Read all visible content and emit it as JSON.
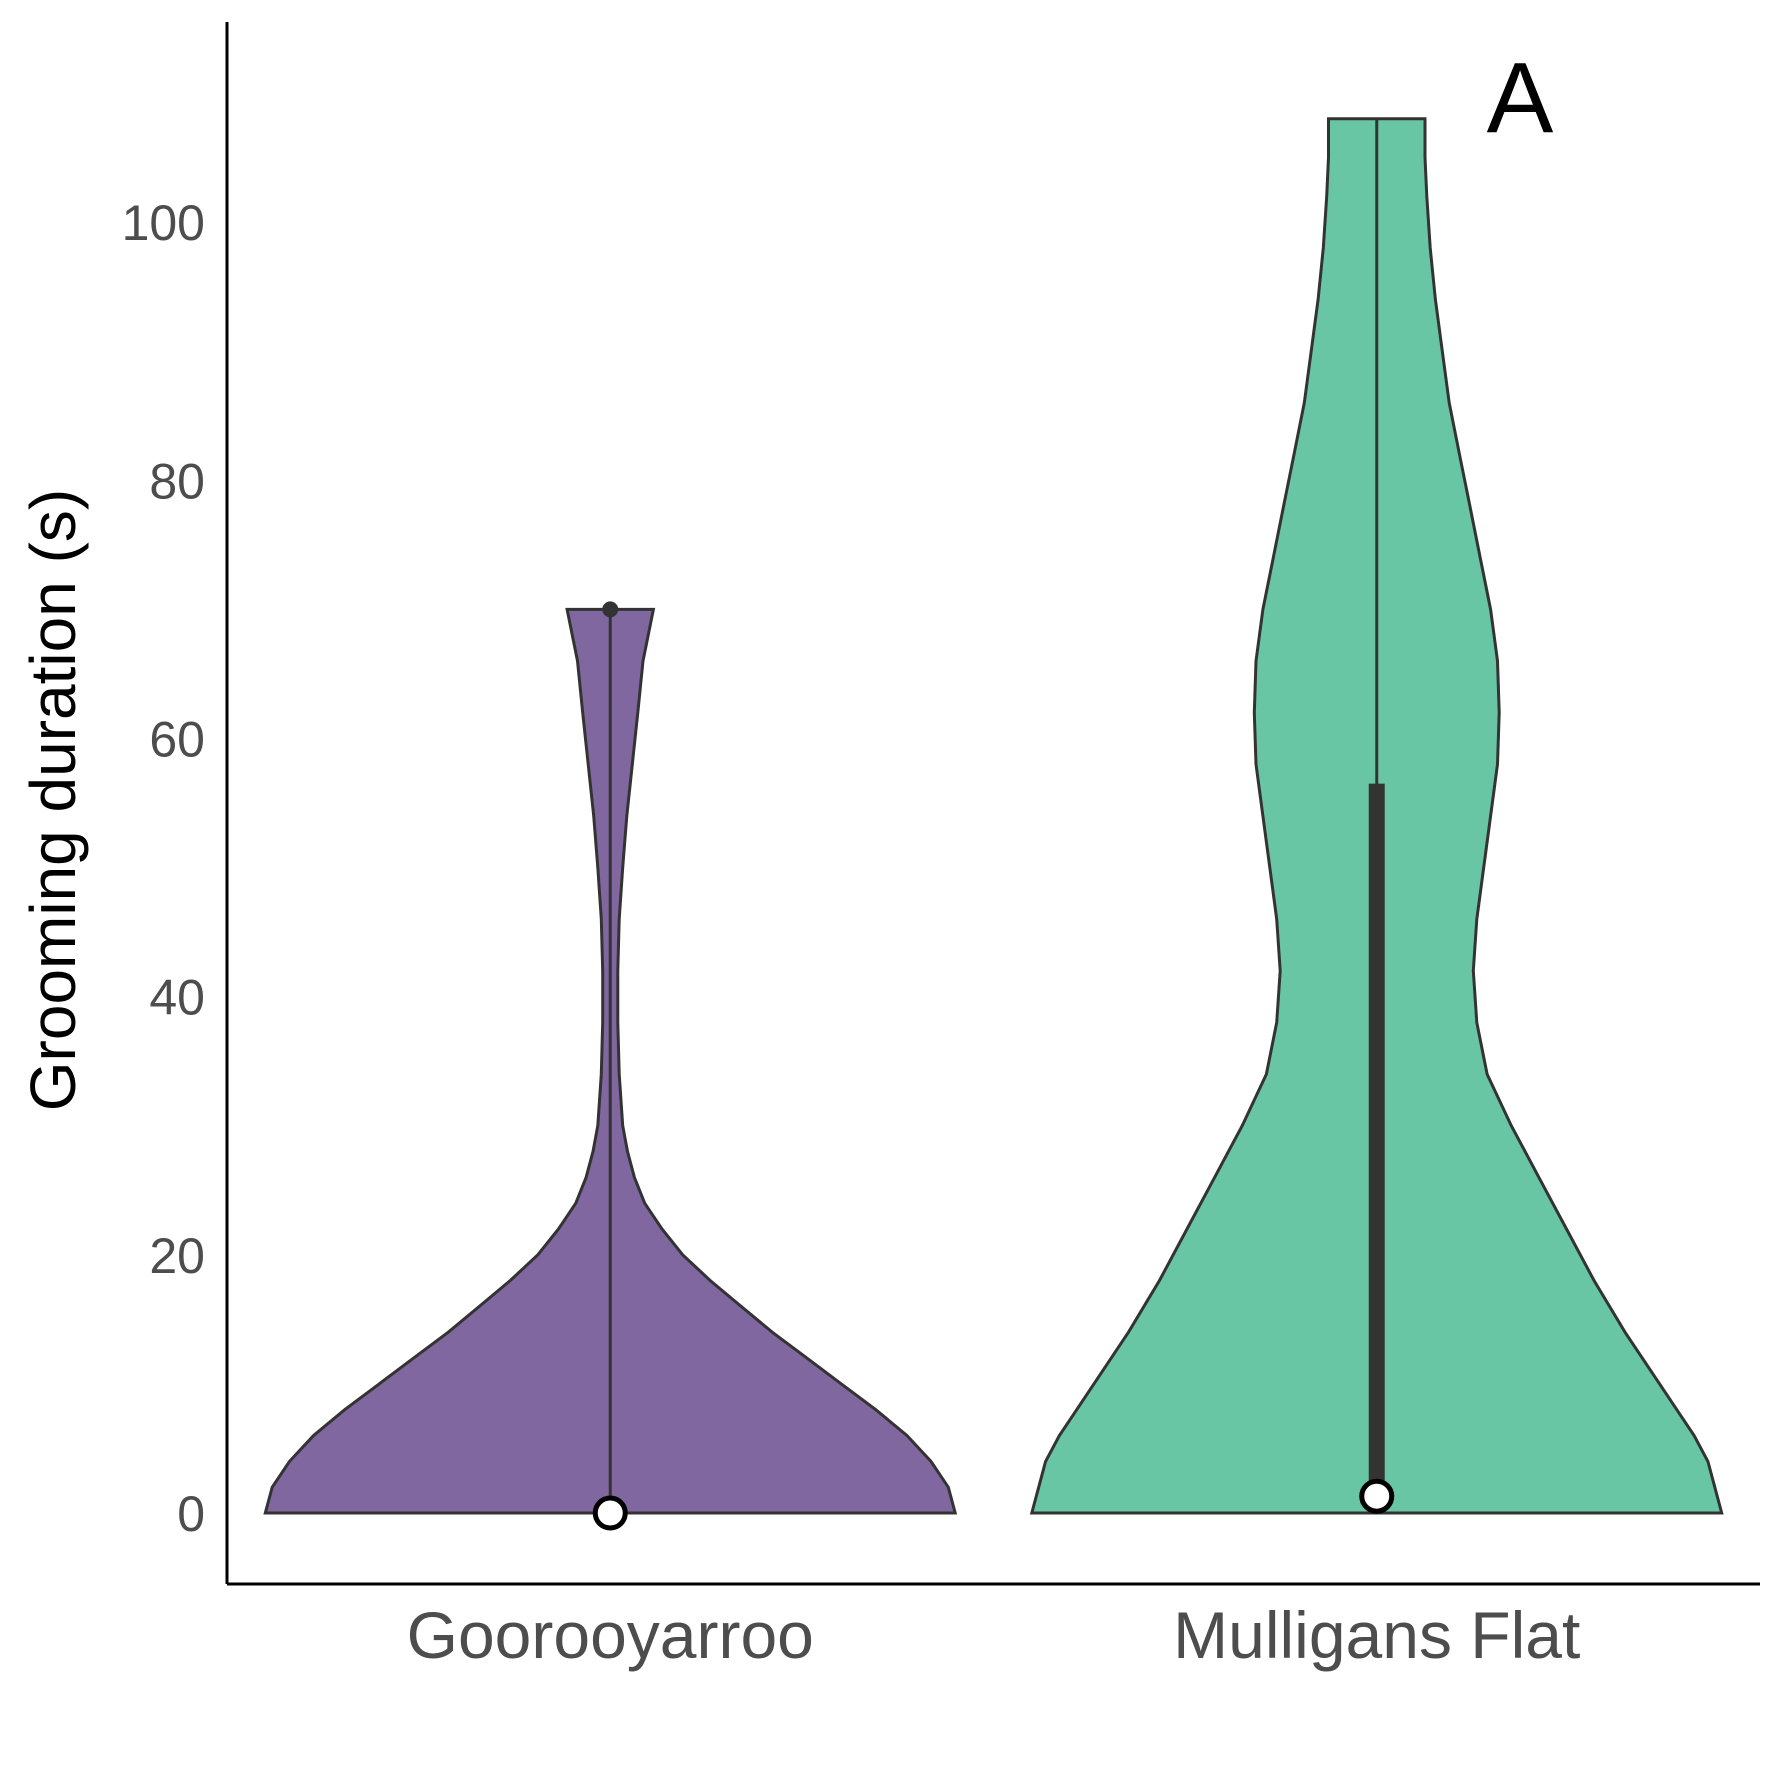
{
  "chart_data": {
    "type": "violin",
    "panel_label": "A",
    "xlabel": "",
    "ylabel": "Grooming duration (s)",
    "ylim": [
      -5.5,
      115.5
    ],
    "yticks": [
      0,
      20,
      40,
      60,
      80,
      100
    ],
    "categories": [
      "Goorooyarroo",
      "Mulligans Flat"
    ],
    "colors": [
      "#8067a0",
      "#69c6a5"
    ],
    "series": [
      {
        "category": "Goorooyarroo",
        "color": "#8067a0",
        "min": 0,
        "max": 70,
        "median": 0,
        "q1": 0,
        "q3": 0,
        "outliers": [
          70
        ],
        "density": [
          [
            0,
            1.0
          ],
          [
            2,
            0.98
          ],
          [
            4,
            0.93
          ],
          [
            6,
            0.86
          ],
          [
            8,
            0.77
          ],
          [
            10,
            0.67
          ],
          [
            12,
            0.57
          ],
          [
            14,
            0.47
          ],
          [
            16,
            0.38
          ],
          [
            18,
            0.29
          ],
          [
            20,
            0.21
          ],
          [
            22,
            0.15
          ],
          [
            24,
            0.1
          ],
          [
            26,
            0.07
          ],
          [
            28,
            0.05
          ],
          [
            30,
            0.036
          ],
          [
            34,
            0.026
          ],
          [
            38,
            0.022
          ],
          [
            42,
            0.022
          ],
          [
            46,
            0.026
          ],
          [
            50,
            0.036
          ],
          [
            54,
            0.048
          ],
          [
            58,
            0.064
          ],
          [
            62,
            0.08
          ],
          [
            66,
            0.095
          ],
          [
            70,
            0.125
          ]
        ]
      },
      {
        "category": "Mulligans Flat",
        "color": "#69c6a5",
        "min": 0,
        "max": 108,
        "median": 1.3,
        "q1": 1.3,
        "q3": 56.5,
        "outliers": [],
        "density": [
          [
            0,
            1.0
          ],
          [
            2,
            0.98
          ],
          [
            4,
            0.96
          ],
          [
            6,
            0.92
          ],
          [
            8,
            0.87
          ],
          [
            10,
            0.82
          ],
          [
            14,
            0.72
          ],
          [
            18,
            0.63
          ],
          [
            22,
            0.55
          ],
          [
            26,
            0.47
          ],
          [
            30,
            0.39
          ],
          [
            34,
            0.32
          ],
          [
            38,
            0.29
          ],
          [
            42,
            0.28
          ],
          [
            46,
            0.29
          ],
          [
            50,
            0.31
          ],
          [
            54,
            0.33
          ],
          [
            58,
            0.35
          ],
          [
            62,
            0.355
          ],
          [
            66,
            0.35
          ],
          [
            70,
            0.33
          ],
          [
            74,
            0.3
          ],
          [
            78,
            0.27
          ],
          [
            82,
            0.24
          ],
          [
            86,
            0.21
          ],
          [
            90,
            0.19
          ],
          [
            94,
            0.17
          ],
          [
            98,
            0.155
          ],
          [
            102,
            0.145
          ],
          [
            105,
            0.14
          ],
          [
            108,
            0.14
          ]
        ]
      }
    ]
  }
}
